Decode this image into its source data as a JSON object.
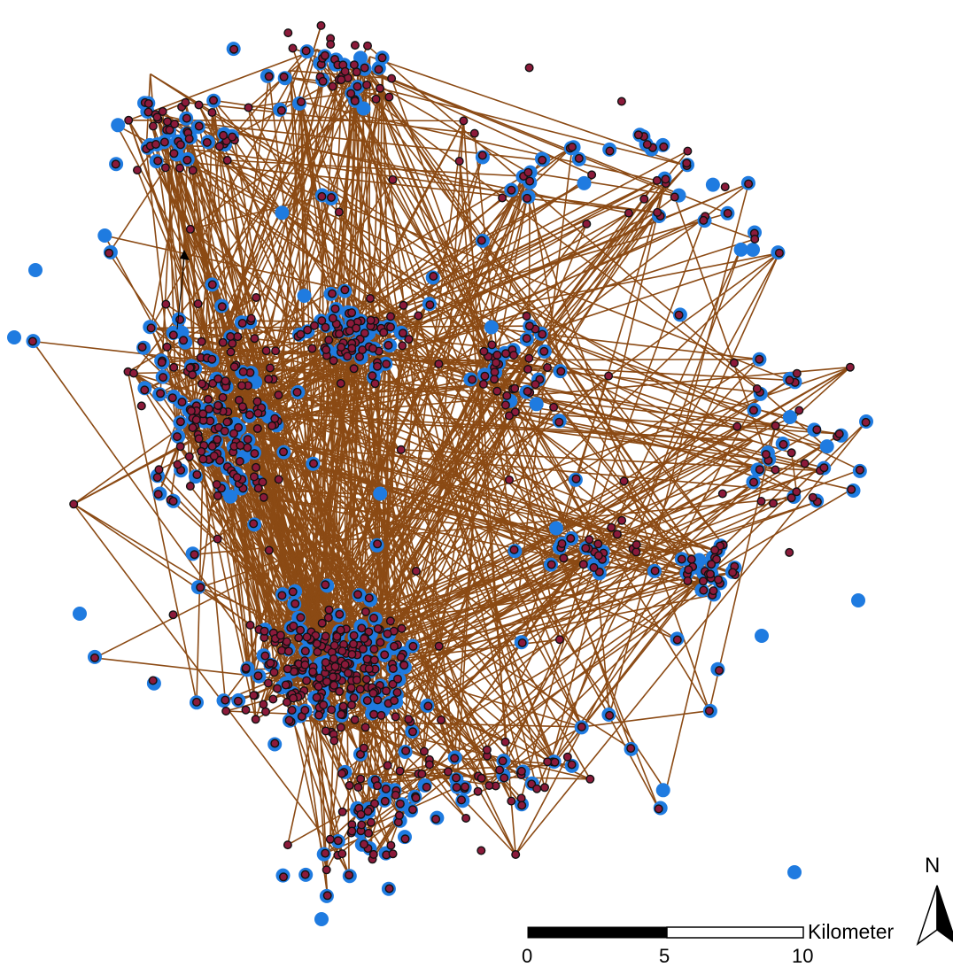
{
  "map": {
    "colors": {
      "background": "#ffffff",
      "route_line": "#8b4a14",
      "point_blue": "#1f7be0",
      "point_dark_fill": "#8b1a3a",
      "point_outline": "#111111"
    },
    "layers": [
      {
        "name": "movement-paths",
        "symbol": "line",
        "color": "#8b4a14"
      },
      {
        "name": "locations-blue",
        "symbol": "circle",
        "color": "#1f7be0"
      },
      {
        "name": "locations-dark",
        "symbol": "circle",
        "color": "#8b1a3a"
      }
    ]
  },
  "scale_bar": {
    "unit": "Kilometer",
    "ticks": [
      "0",
      "5",
      "10"
    ]
  },
  "north_arrow": {
    "label": "N",
    "icon": "north-arrow-icon"
  }
}
